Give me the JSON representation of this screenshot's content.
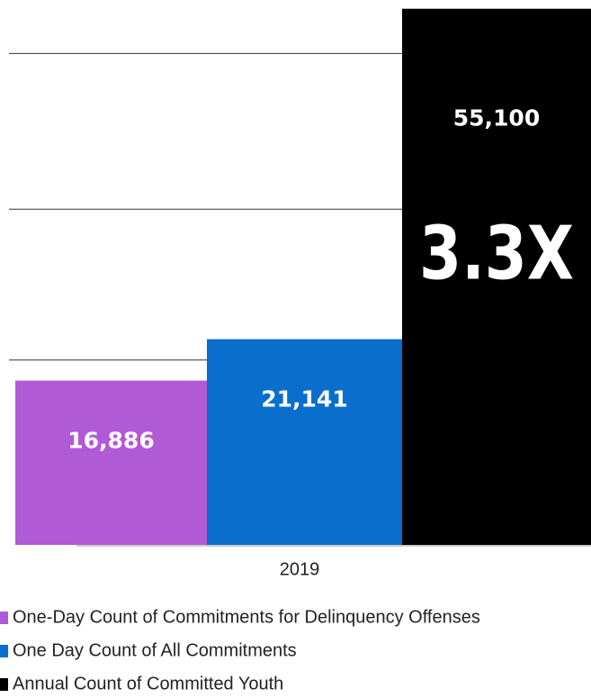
{
  "chart_data": {
    "type": "bar",
    "categories": [
      "2019"
    ],
    "series": [
      {
        "name": "One-Day Count of Commitments for Delinquency Offenses",
        "color": "#b05ad6",
        "values": [
          16886
        ],
        "value_labels": [
          "16,886"
        ]
      },
      {
        "name": "One Day Count of All Commitments",
        "color": "#0a6fcc",
        "values": [
          21141
        ],
        "value_labels": [
          "21,141"
        ]
      },
      {
        "name": "Annual Count of Committed Youth",
        "color": "#000000",
        "values": [
          55100
        ],
        "value_labels": [
          "55,100"
        ]
      }
    ],
    "annotation": "3.3X",
    "ylim": [
      0,
      56000
    ],
    "yticks": [
      19000,
      34500,
      50500
    ],
    "grid": true
  }
}
